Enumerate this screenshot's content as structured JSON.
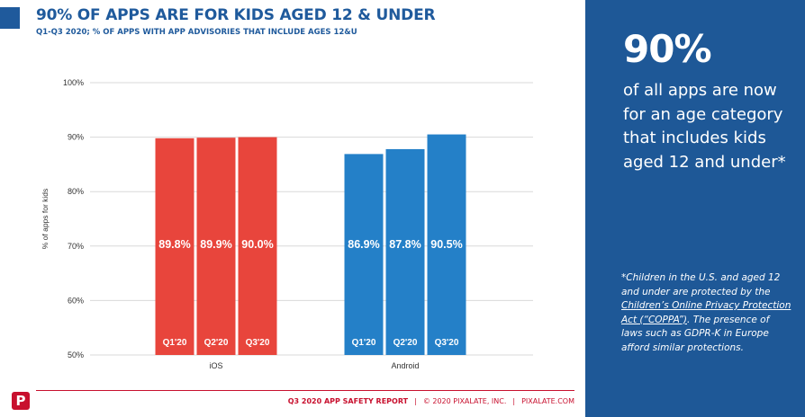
{
  "header": {
    "title": "90% OF APPS ARE FOR KIDS AGED 12 & UNDER",
    "subtitle": "Q1-Q3 2020; % OF APPS WITH APP ADVISORIES THAT INCLUDE AGES 12&U"
  },
  "side_panel": {
    "big_stat": "90%",
    "stat_desc": "of all apps are now for an age category that includes kids aged 12 and under*",
    "footnote_pre": "*Children in the U.S. and aged 12 and under are protected by the ",
    "footnote_link": "Children’s Online Privacy Protection Act (“COPPA”)",
    "footnote_post": ". The presence of laws such as GDPR-K in Europe afford similar protections."
  },
  "footer": {
    "logo_letter": "P",
    "report": "Q3 2020 APP SAFETY REPORT",
    "sep1": "|",
    "copyright": "© 2020 PIXALATE, INC.",
    "sep2": "|",
    "site": "PIXALATE.COM"
  },
  "colors": {
    "brand_blue": "#1f5a9c",
    "panel_blue": "#1e5897",
    "ios_red": "#e8453c",
    "android_blue": "#2480c8",
    "footer_red": "#c8102e"
  },
  "chart_data": {
    "type": "bar",
    "ylabel": "% of apps for kids",
    "ylim": [
      50,
      100
    ],
    "yticks": [
      50,
      60,
      70,
      80,
      90,
      100
    ],
    "ytick_labels": [
      "50%",
      "60%",
      "70%",
      "80%",
      "90%",
      "100%"
    ],
    "grid": true,
    "groups": [
      {
        "name": "iOS",
        "color": "#e8453c",
        "bars": [
          {
            "quarter": "Q1'20",
            "value": 89.8,
            "label": "89.8%"
          },
          {
            "quarter": "Q2'20",
            "value": 89.9,
            "label": "89.9%"
          },
          {
            "quarter": "Q3'20",
            "value": 90.0,
            "label": "90.0%"
          }
        ]
      },
      {
        "name": "Android",
        "color": "#2480c8",
        "bars": [
          {
            "quarter": "Q1'20",
            "value": 86.9,
            "label": "86.9%"
          },
          {
            "quarter": "Q2'20",
            "value": 87.8,
            "label": "87.8%"
          },
          {
            "quarter": "Q3'20",
            "value": 90.5,
            "label": "90.5%"
          }
        ]
      }
    ]
  }
}
